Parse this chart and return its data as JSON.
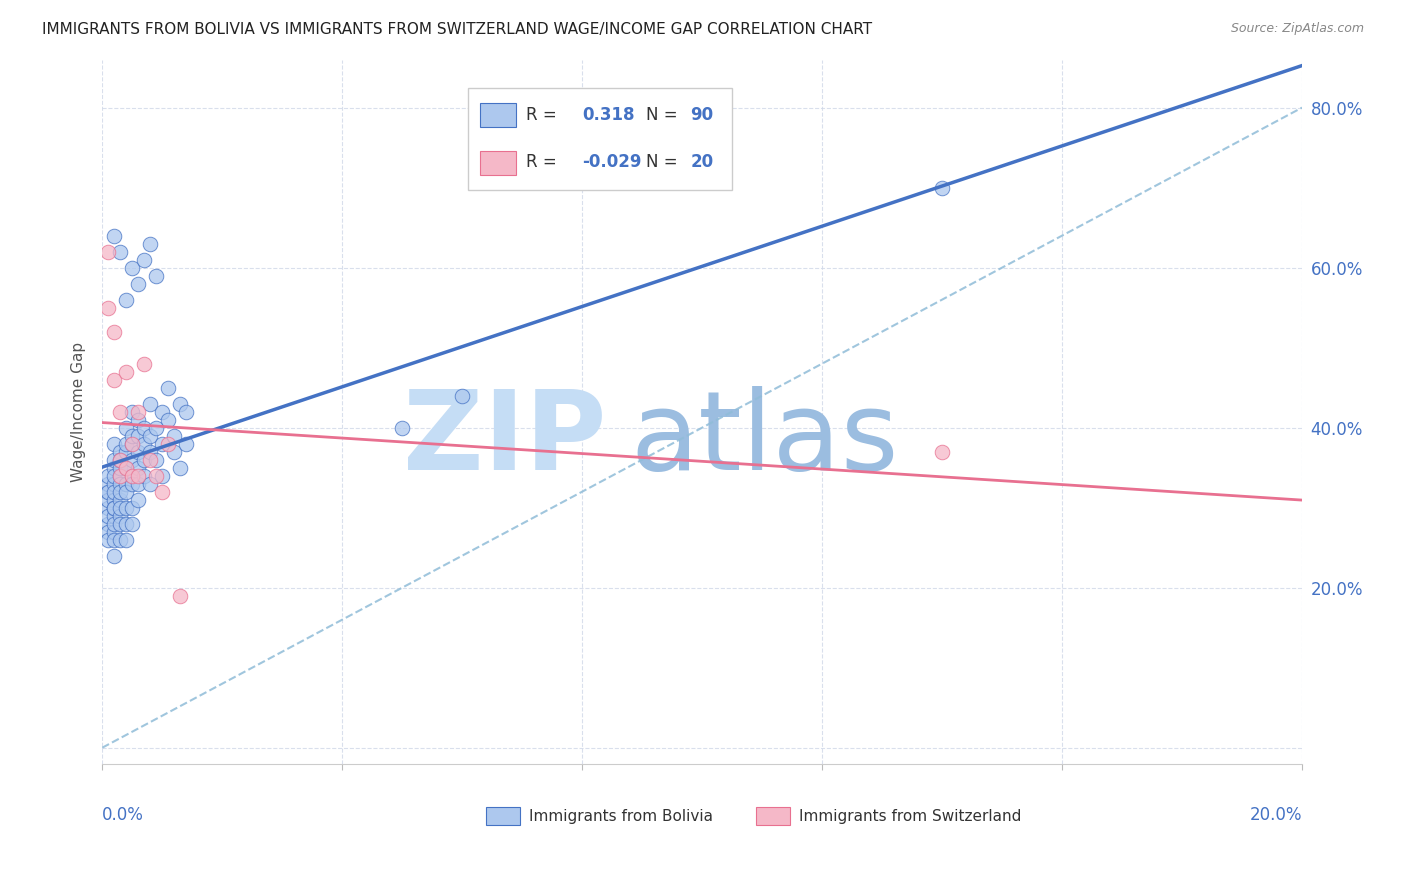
{
  "title": "IMMIGRANTS FROM BOLIVIA VS IMMIGRANTS FROM SWITZERLAND WAGE/INCOME GAP CORRELATION CHART",
  "source": "Source: ZipAtlas.com",
  "ylabel": "Wage/Income Gap",
  "yticks": [
    0.0,
    0.2,
    0.4,
    0.6,
    0.8
  ],
  "ytick_labels": [
    "",
    "20.0%",
    "40.0%",
    "60.0%",
    "80.0%"
  ],
  "xlim": [
    0.0,
    0.2
  ],
  "ylim": [
    -0.02,
    0.86
  ],
  "bolivia_R": 0.318,
  "bolivia_N": 90,
  "switzerland_R": -0.029,
  "switzerland_N": 20,
  "bolivia_color": "#adc8ee",
  "switzerland_color": "#f5b8c8",
  "bolivia_line_color": "#4472c4",
  "switzerland_line_color": "#e87090",
  "dashed_line_color": "#90bcd8",
  "watermark_zip": "ZIP",
  "watermark_atlas": "atlas",
  "watermark_color_zip": "#c5ddf5",
  "watermark_color_atlas": "#9bbde0",
  "background_color": "#ffffff",
  "title_fontsize": 11,
  "source_fontsize": 9,
  "bolivia_x": [
    0.001,
    0.001,
    0.001,
    0.001,
    0.001,
    0.001,
    0.001,
    0.001,
    0.001,
    0.001,
    0.002,
    0.002,
    0.002,
    0.002,
    0.002,
    0.002,
    0.002,
    0.002,
    0.002,
    0.002,
    0.002,
    0.002,
    0.002,
    0.002,
    0.003,
    0.003,
    0.003,
    0.003,
    0.003,
    0.003,
    0.003,
    0.003,
    0.003,
    0.003,
    0.003,
    0.004,
    0.004,
    0.004,
    0.004,
    0.004,
    0.004,
    0.004,
    0.004,
    0.004,
    0.005,
    0.005,
    0.005,
    0.005,
    0.005,
    0.005,
    0.005,
    0.005,
    0.006,
    0.006,
    0.006,
    0.006,
    0.006,
    0.006,
    0.007,
    0.007,
    0.007,
    0.007,
    0.008,
    0.008,
    0.008,
    0.008,
    0.009,
    0.009,
    0.01,
    0.01,
    0.01,
    0.011,
    0.012,
    0.012,
    0.013,
    0.013,
    0.014,
    0.014,
    0.05,
    0.06,
    0.004,
    0.003,
    0.002,
    0.005,
    0.006,
    0.007,
    0.008,
    0.009,
    0.14,
    0.011
  ],
  "bolivia_y": [
    0.3,
    0.32,
    0.28,
    0.31,
    0.33,
    0.29,
    0.27,
    0.34,
    0.26,
    0.32,
    0.31,
    0.33,
    0.29,
    0.35,
    0.27,
    0.36,
    0.3,
    0.28,
    0.32,
    0.34,
    0.3,
    0.26,
    0.38,
    0.24,
    0.34,
    0.31,
    0.35,
    0.29,
    0.33,
    0.37,
    0.28,
    0.32,
    0.3,
    0.36,
    0.26,
    0.35,
    0.33,
    0.37,
    0.3,
    0.38,
    0.28,
    0.4,
    0.32,
    0.26,
    0.36,
    0.34,
    0.38,
    0.3,
    0.42,
    0.28,
    0.33,
    0.39,
    0.37,
    0.35,
    0.39,
    0.33,
    0.41,
    0.31,
    0.38,
    0.36,
    0.4,
    0.34,
    0.39,
    0.37,
    0.43,
    0.33,
    0.4,
    0.36,
    0.42,
    0.38,
    0.34,
    0.41,
    0.39,
    0.37,
    0.43,
    0.35,
    0.42,
    0.38,
    0.4,
    0.44,
    0.56,
    0.62,
    0.64,
    0.6,
    0.58,
    0.61,
    0.63,
    0.59,
    0.7,
    0.45
  ],
  "switzerland_x": [
    0.001,
    0.001,
    0.002,
    0.002,
    0.003,
    0.003,
    0.003,
    0.004,
    0.004,
    0.005,
    0.005,
    0.006,
    0.006,
    0.007,
    0.008,
    0.009,
    0.01,
    0.011,
    0.14,
    0.013
  ],
  "switzerland_y": [
    0.55,
    0.62,
    0.46,
    0.52,
    0.34,
    0.36,
    0.42,
    0.35,
    0.47,
    0.34,
    0.38,
    0.34,
    0.42,
    0.48,
    0.36,
    0.34,
    0.32,
    0.38,
    0.37,
    0.19
  ]
}
